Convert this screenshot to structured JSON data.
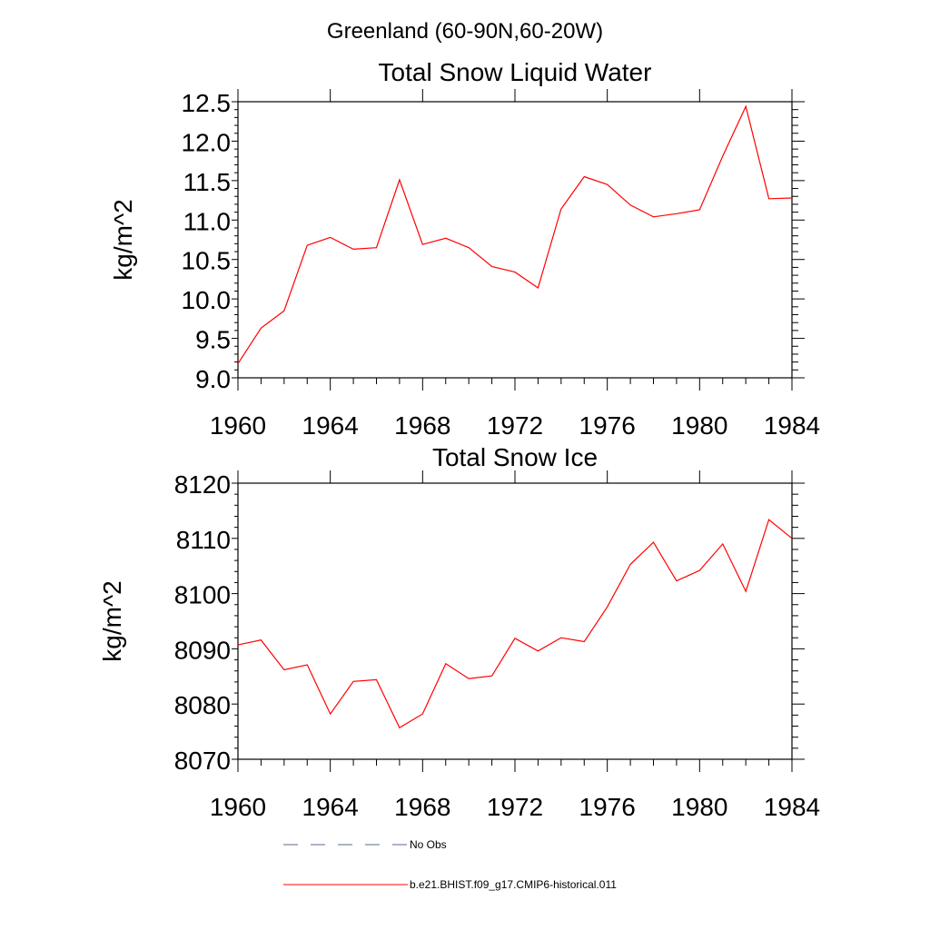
{
  "figure": {
    "main_title": "Greenland (60-90N,60-20W)"
  },
  "chart_data": [
    {
      "type": "line",
      "title": "Total Snow Liquid Water",
      "ylabel": "kg/m^2",
      "xlabel": "",
      "xlim": [
        1960,
        1984
      ],
      "ylim": [
        9.0,
        12.5
      ],
      "x_ticks": [
        "1960",
        "1964",
        "1968",
        "1972",
        "1976",
        "1980",
        "1984"
      ],
      "y_ticks": [
        "9.0",
        "9.5",
        "10.0",
        "10.5",
        "11.0",
        "11.5",
        "12.0",
        "12.5"
      ],
      "x": [
        1960,
        1961,
        1962,
        1963,
        1964,
        1965,
        1966,
        1967,
        1968,
        1969,
        1970,
        1971,
        1972,
        1973,
        1974,
        1975,
        1976,
        1977,
        1978,
        1979,
        1980,
        1981,
        1982,
        1983,
        1984
      ],
      "series": [
        {
          "color": "#ff0000",
          "values": [
            9.18,
            9.63,
            9.85,
            10.68,
            10.78,
            10.63,
            10.65,
            11.51,
            10.69,
            10.77,
            10.65,
            10.41,
            10.34,
            10.14,
            11.14,
            11.55,
            11.45,
            11.19,
            11.04,
            11.08,
            11.13,
            11.81,
            12.44,
            11.27,
            11.28
          ]
        }
      ]
    },
    {
      "type": "line",
      "title": "Total Snow Ice",
      "ylabel": "kg/m^2",
      "xlabel": "",
      "xlim": [
        1960,
        1984
      ],
      "ylim": [
        8070,
        8120
      ],
      "x_ticks": [
        "1960",
        "1964",
        "1968",
        "1972",
        "1976",
        "1980",
        "1984"
      ],
      "y_ticks": [
        "8070",
        "8080",
        "8090",
        "8100",
        "8110",
        "8120"
      ],
      "x": [
        1960,
        1961,
        1962,
        1963,
        1964,
        1965,
        1966,
        1967,
        1968,
        1969,
        1970,
        1971,
        1972,
        1973,
        1974,
        1975,
        1976,
        1977,
        1978,
        1979,
        1980,
        1981,
        1982,
        1983,
        1984
      ],
      "series": [
        {
          "color": "#ff0000",
          "values": [
            8090.7,
            8091.6,
            8086.2,
            8087.1,
            8078.2,
            8084.1,
            8084.4,
            8075.7,
            8078.2,
            8087.3,
            8084.6,
            8085.1,
            8091.9,
            8089.6,
            8092.0,
            8091.3,
            8097.6,
            8105.3,
            8109.3,
            8102.3,
            8104.2,
            8109.0,
            8100.4,
            8113.4,
            8110.0
          ]
        }
      ]
    }
  ],
  "legend": [
    {
      "label": "No Obs",
      "style": "dashed",
      "color": "#5a6a8a"
    },
    {
      "label": "b.e21.BHIST.f09_g17.CMIP6-historical.011",
      "style": "solid",
      "color": "#ff0000"
    }
  ]
}
